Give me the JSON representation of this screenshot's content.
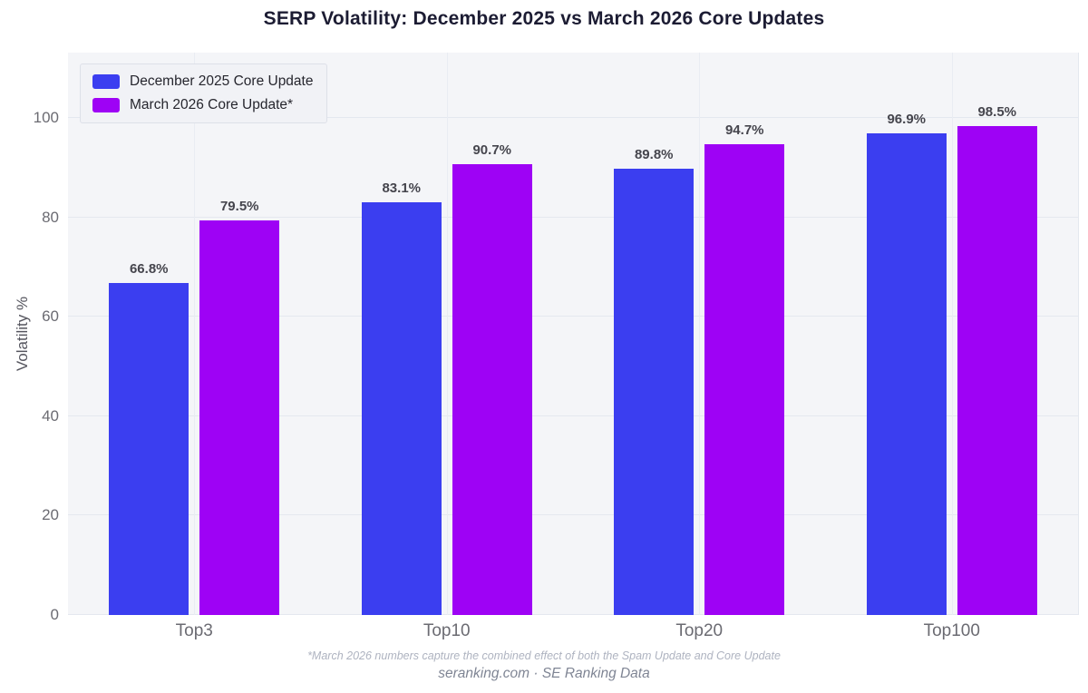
{
  "title": "SERP Volatility: December 2025 vs March 2026 Core Updates",
  "chart_data": {
    "type": "bar",
    "categories": [
      "Top3",
      "Top10",
      "Top20",
      "Top100"
    ],
    "series": [
      {
        "name": "December 2025 Core Update",
        "color": "#3b3ef0",
        "values": [
          66.8,
          83.1,
          89.8,
          96.9
        ]
      },
      {
        "name": "March 2026 Core Update*",
        "color": "#9e02f5",
        "values": [
          79.5,
          90.7,
          94.7,
          98.5
        ]
      }
    ],
    "title": "SERP Volatility: December 2025 vs March 2026 Core Updates",
    "xlabel": "",
    "ylabel": "Volatility %",
    "yticks": [
      0,
      20,
      40,
      60,
      80,
      100
    ],
    "ylim": [
      0,
      113.2
    ],
    "grid": true,
    "legend_position": "upper-left",
    "value_label_suffix": "%"
  },
  "footnote": "*March 2026 numbers capture the combined effect of both the Spam Update and Core Update",
  "source_line": "seranking.com  ·  SE Ranking Data",
  "colors": {
    "plot_background": "#f4f5f8",
    "gridline": "#e4e8ef",
    "title_text": "#1c1c33",
    "tick_text": "#6b6b72",
    "value_label_text": "#45454d",
    "series_blue": "#3b3ef0",
    "series_purple": "#9e02f5"
  }
}
